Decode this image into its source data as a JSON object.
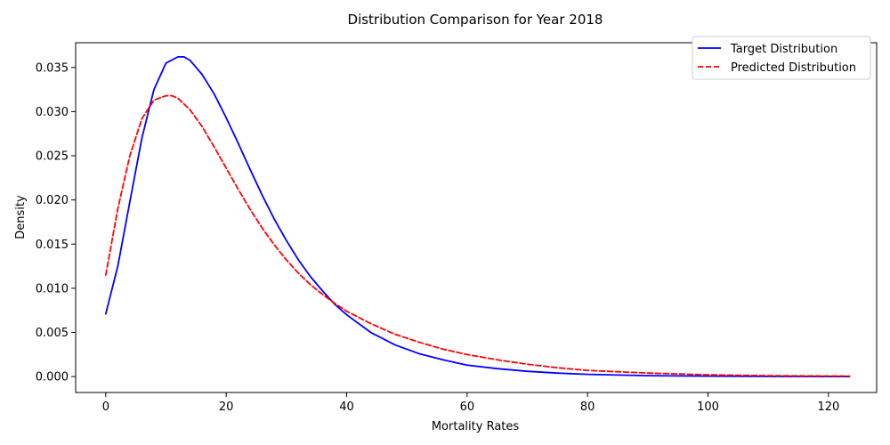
{
  "chart_data": {
    "type": "line",
    "title": "Distribution Comparison for Year 2018",
    "xlabel": "Mortality Rates",
    "ylabel": "Density",
    "xlim": [
      -5,
      128
    ],
    "ylim": [
      -0.0018,
      0.0378
    ],
    "xticks": [
      0,
      20,
      40,
      60,
      80,
      100,
      120
    ],
    "xtick_labels": [
      "0",
      "20",
      "40",
      "60",
      "80",
      "100",
      "120"
    ],
    "yticks": [
      0.0,
      0.005,
      0.01,
      0.015,
      0.02,
      0.025,
      0.03,
      0.035
    ],
    "ytick_labels": [
      "0.000",
      "0.005",
      "0.010",
      "0.015",
      "0.020",
      "0.025",
      "0.030",
      "0.035"
    ],
    "grid": false,
    "legend_position": "top-right",
    "series": [
      {
        "name": "Target Distribution",
        "color": "#0000ff",
        "style": "solid",
        "x": [
          0,
          2,
          4,
          6,
          8,
          10,
          12,
          13,
          14,
          16,
          18,
          20,
          22,
          24,
          26,
          28,
          30,
          32,
          34,
          36,
          38,
          40,
          44,
          48,
          52,
          56,
          60,
          65,
          70,
          75,
          80,
          90,
          100,
          110,
          123.5
        ],
        "y": [
          0.0071,
          0.0125,
          0.0198,
          0.027,
          0.0325,
          0.0355,
          0.0362,
          0.0362,
          0.0358,
          0.0342,
          0.032,
          0.0293,
          0.0264,
          0.0234,
          0.0205,
          0.0178,
          0.0154,
          0.0132,
          0.0113,
          0.0097,
          0.0082,
          0.007,
          0.005,
          0.0036,
          0.0026,
          0.0019,
          0.0013,
          0.0009,
          0.0006,
          0.0004,
          0.00025,
          0.0001,
          5e-05,
          2e-05,
          1e-05
        ]
      },
      {
        "name": "Predicted Distribution",
        "color": "#ff0000",
        "style": "dashed",
        "x": [
          0,
          2,
          4,
          6,
          8,
          10,
          11,
          12,
          14,
          16,
          18,
          20,
          22,
          24,
          26,
          28,
          30,
          32,
          34,
          36,
          38,
          40,
          44,
          48,
          52,
          56,
          60,
          65,
          70,
          75,
          80,
          90,
          100,
          110,
          123.5
        ],
        "y": [
          0.0115,
          0.019,
          0.025,
          0.0292,
          0.0313,
          0.0318,
          0.0318,
          0.0315,
          0.0302,
          0.0283,
          0.026,
          0.0236,
          0.0212,
          0.0189,
          0.0168,
          0.0149,
          0.0132,
          0.0117,
          0.0104,
          0.0093,
          0.0083,
          0.0074,
          0.006,
          0.0048,
          0.0039,
          0.0031,
          0.0025,
          0.0019,
          0.0014,
          0.001,
          0.0007,
          0.0004,
          0.0002,
          0.0001,
          5e-05
        ]
      }
    ]
  }
}
